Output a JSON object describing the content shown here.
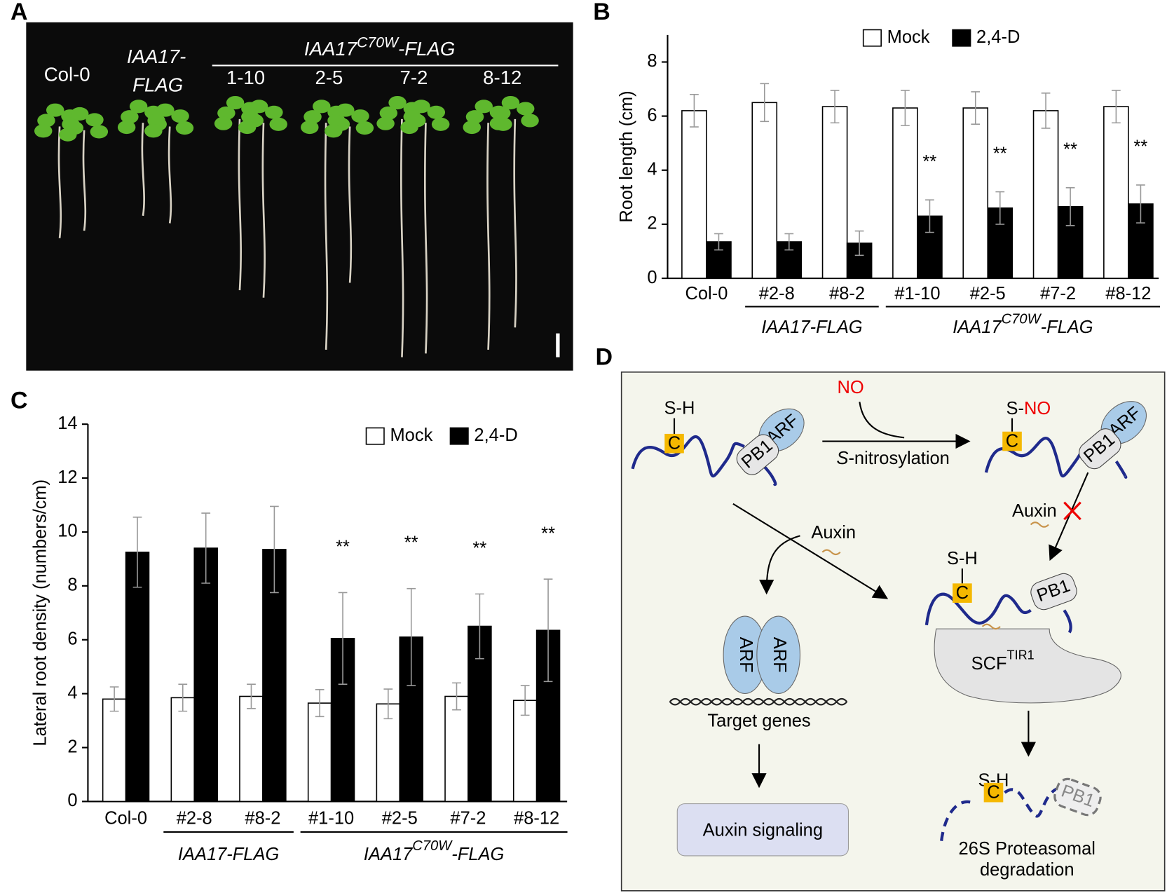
{
  "panel_labels": [
    "A",
    "B",
    "C",
    "D"
  ],
  "photo": {
    "col0": "Col-0",
    "line_label": [
      "IAA17-",
      "FLAG"
    ],
    "group_label": [
      "IAA17",
      "C70W",
      "-FLAG"
    ],
    "lines": [
      "1-10",
      "2-5",
      "7-2",
      "8-12"
    ]
  },
  "chart_data": [
    {
      "type": "bar",
      "y_label": "Root length (cm)",
      "categories": [
        "Col-0",
        "#2-8",
        "#8-2",
        "#1-10",
        "#2-5",
        "#7-2",
        "#8-12"
      ],
      "series": [
        {
          "name": "Mock",
          "color": "#ffffff",
          "values": [
            6.2,
            6.5,
            6.35,
            6.3,
            6.3,
            6.2,
            6.35
          ],
          "errors": [
            0.6,
            0.7,
            0.6,
            0.65,
            0.6,
            0.65,
            0.6
          ]
        },
        {
          "name": "2,4-D",
          "color": "#000000",
          "values": [
            1.35,
            1.35,
            1.3,
            2.3,
            2.6,
            2.65,
            2.75
          ],
          "errors": [
            0.3,
            0.3,
            0.45,
            0.6,
            0.6,
            0.7,
            0.7
          ]
        }
      ],
      "significance": [
        null,
        null,
        null,
        "**",
        "**",
        "**",
        "**"
      ],
      "category_groups": [
        {
          "label": [
            "IAA17-FLAG"
          ],
          "members": [
            1,
            2
          ]
        },
        {
          "label": [
            "IAA17",
            "C70W",
            "-FLAG"
          ],
          "members": [
            3,
            4,
            5,
            6
          ]
        }
      ],
      "ylim": [
        0,
        9
      ],
      "yticks": [
        0,
        2,
        4,
        6,
        8
      ]
    },
    {
      "type": "bar",
      "y_label": "Lateral root density (numbers/cm)",
      "categories": [
        "Col-0",
        "#2-8",
        "#8-2",
        "#1-10",
        "#2-5",
        "#7-2",
        "#8-12"
      ],
      "series": [
        {
          "name": "Mock",
          "color": "#ffffff",
          "values": [
            3.8,
            3.85,
            3.9,
            3.65,
            3.62,
            3.9,
            3.75
          ],
          "errors": [
            0.45,
            0.5,
            0.45,
            0.5,
            0.55,
            0.5,
            0.55
          ]
        },
        {
          "name": "2,4-D",
          "color": "#000000",
          "values": [
            9.25,
            9.4,
            9.35,
            6.05,
            6.1,
            6.5,
            6.35
          ],
          "errors": [
            1.3,
            1.3,
            1.6,
            1.7,
            1.8,
            1.2,
            1.9
          ]
        }
      ],
      "significance": [
        null,
        null,
        null,
        "**",
        "**",
        "**",
        "**"
      ],
      "category_groups": [
        {
          "label": [
            "IAA17-FLAG"
          ],
          "members": [
            1,
            2
          ]
        },
        {
          "label": [
            "IAA17",
            "C70W",
            "-FLAG"
          ],
          "members": [
            3,
            4,
            5,
            6
          ]
        }
      ],
      "ylim": [
        0,
        14
      ],
      "yticks": [
        0,
        2,
        4,
        6,
        8,
        10,
        12,
        14
      ]
    }
  ],
  "diagram": {
    "state1": {
      "thiol": "S-H",
      "cys": "C",
      "arf": "ARF",
      "pb1": "PB1"
    },
    "no": "NO",
    "nitrosylation": [
      "S",
      "-nitrosylation"
    ],
    "state2": {
      "thiol": [
        "S-",
        "NO"
      ],
      "cys": "C",
      "arf": "ARF",
      "pb1": "PB1"
    },
    "auxin_left": "Auxin",
    "auxin_right": "Auxin",
    "state3": {
      "thiol": "S-H",
      "cys": "C",
      "pb1": "PB1",
      "scf": [
        "SCF",
        "TIR1"
      ]
    },
    "target": {
      "arf1": "ARF",
      "arf2": "ARF",
      "genes": "Target genes"
    },
    "signaling": "Auxin signaling",
    "degraded": {
      "thiol": "S-H",
      "cys": "C",
      "pb1": "PB1",
      "label": [
        "26S Proteasomal",
        "degradation"
      ]
    }
  }
}
